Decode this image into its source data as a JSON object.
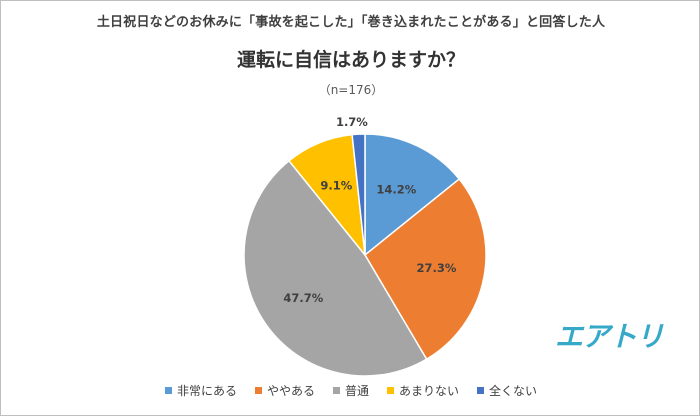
{
  "subtitle": "土日祝日などのお休みに「事故を起こした」「巻き込まれたことがある」と回答した人",
  "logo_text": "エアトリ",
  "chart_data": {
    "type": "pie",
    "title": "運転に自信はありますか？",
    "sample_note": "（n=176）",
    "categories": [
      "非常にある",
      "ややある",
      "普通",
      "あまりない",
      "全くない"
    ],
    "values": [
      14.2,
      27.3,
      47.7,
      9.1,
      1.7
    ],
    "labels": [
      "14.2%",
      "27.3%",
      "47.7%",
      "9.1%",
      "1.7%"
    ],
    "colors": [
      "#5b9bd5",
      "#ed7d31",
      "#a5a5a5",
      "#ffc000",
      "#4472c4"
    ],
    "start_angle_deg": 0,
    "direction": "clockwise",
    "legend_position": "bottom"
  }
}
